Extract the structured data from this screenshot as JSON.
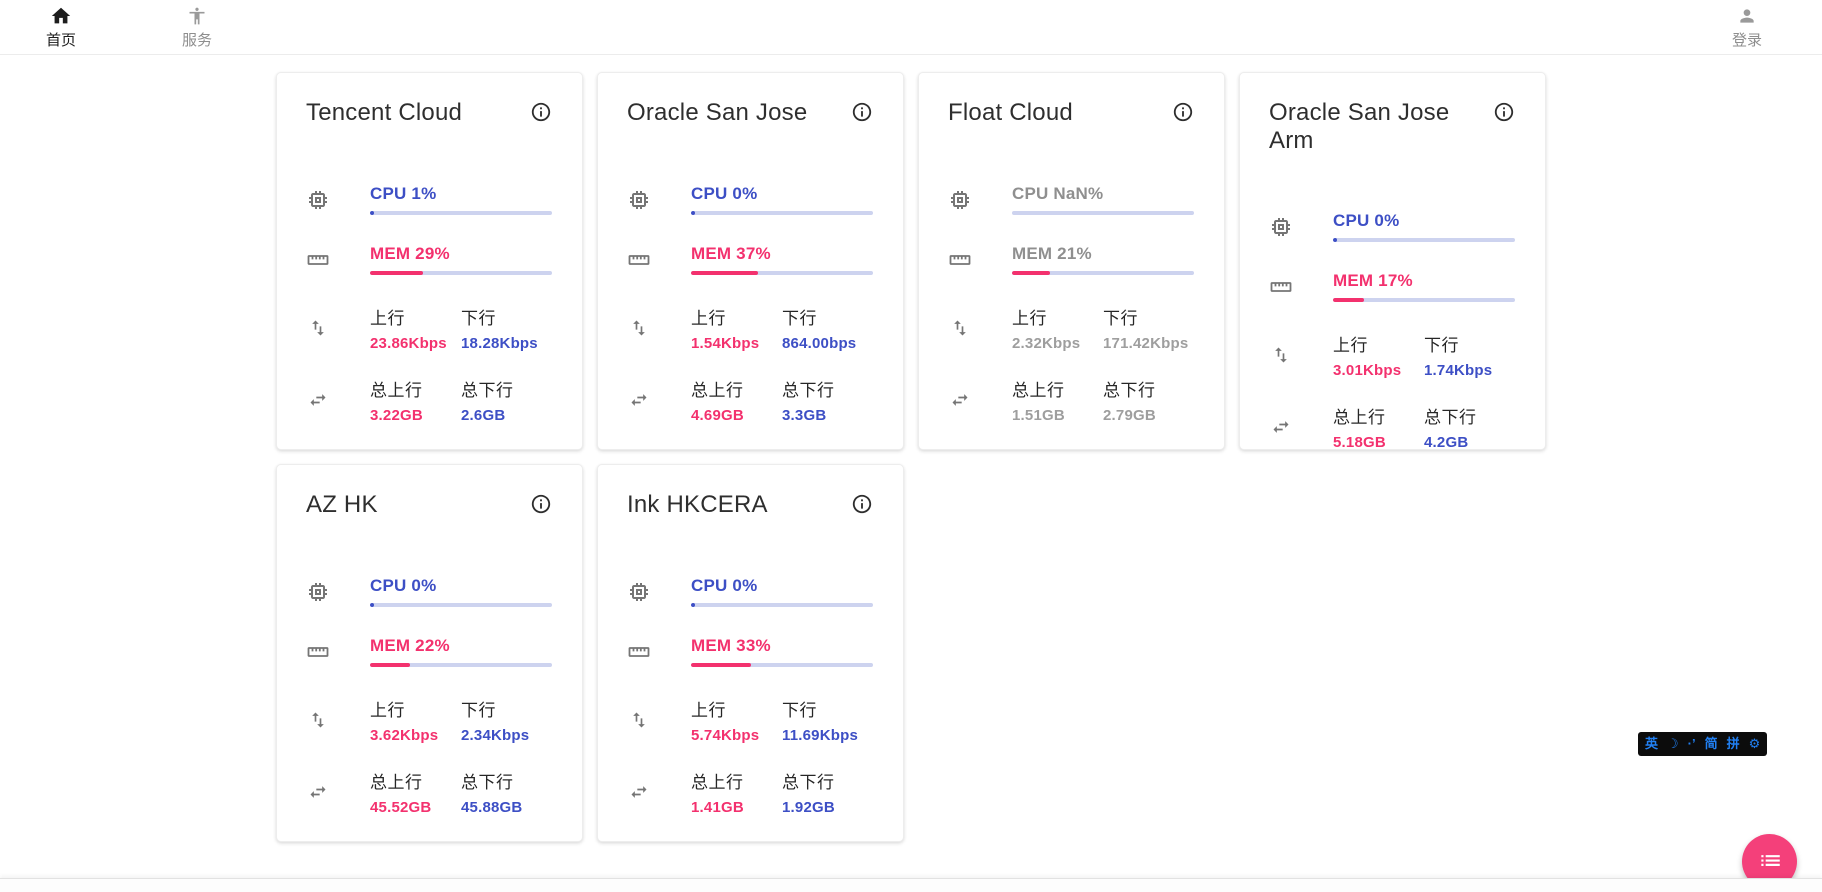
{
  "nav": {
    "home": {
      "label": "首页",
      "icon": "home-icon"
    },
    "service": {
      "label": "服务",
      "icon": "accessibility-icon"
    },
    "login": {
      "label": "登录",
      "icon": "person-icon"
    }
  },
  "labels": {
    "up": "上行",
    "down": "下行",
    "total_up": "总上行",
    "total_down": "总下行"
  },
  "colors": {
    "accent_blue": "#3d4fc5",
    "accent_pink": "#f3316e",
    "bar_track": "#cdd3ef",
    "offline_gray": "#9e9e9e",
    "fab_pink": "#f4407a",
    "ime_blue": "#2180f3"
  },
  "cards": [
    {
      "title": "Tencent Cloud",
      "cpu": "CPU 1%",
      "cpu_pct": 1,
      "mem": "MEM 29%",
      "mem_pct": 29,
      "up": "23.86Kbps",
      "down": "18.28Kbps",
      "total_up": "3.22GB",
      "total_down": "2.6GB",
      "offline": false
    },
    {
      "title": "Oracle San Jose",
      "cpu": "CPU 0%",
      "cpu_pct": 0,
      "mem": "MEM 37%",
      "mem_pct": 37,
      "up": "1.54Kbps",
      "down": "864.00bps",
      "total_up": "4.69GB",
      "total_down": "3.3GB",
      "offline": false
    },
    {
      "title": "Float Cloud",
      "cpu": "CPU NaN%",
      "cpu_pct": null,
      "mem": "MEM 21%",
      "mem_pct": 21,
      "up": "2.32Kbps",
      "down": "171.42Kbps",
      "total_up": "1.51GB",
      "total_down": "2.79GB",
      "offline": true
    },
    {
      "title": "Oracle San Jose Arm",
      "cpu": "CPU 0%",
      "cpu_pct": 0,
      "mem": "MEM 17%",
      "mem_pct": 17,
      "up": "3.01Kbps",
      "down": "1.74Kbps",
      "total_up": "5.18GB",
      "total_down": "4.2GB",
      "offline": false
    },
    {
      "title": "AZ HK",
      "cpu": "CPU 0%",
      "cpu_pct": 0,
      "mem": "MEM 22%",
      "mem_pct": 22,
      "up": "3.62Kbps",
      "down": "2.34Kbps",
      "total_up": "45.52GB",
      "total_down": "45.88GB",
      "offline": false
    },
    {
      "title": "Ink HKCERA",
      "cpu": "CPU 0%",
      "cpu_pct": 0,
      "mem": "MEM 33%",
      "mem_pct": 33,
      "up": "5.74Kbps",
      "down": "11.69Kbps",
      "total_up": "1.41GB",
      "total_down": "1.92GB",
      "offline": false
    }
  ],
  "ime": {
    "items": [
      "英",
      "☽",
      "·’",
      "简",
      "拼",
      "⚙"
    ]
  },
  "fab": {
    "icon": "list-icon"
  }
}
